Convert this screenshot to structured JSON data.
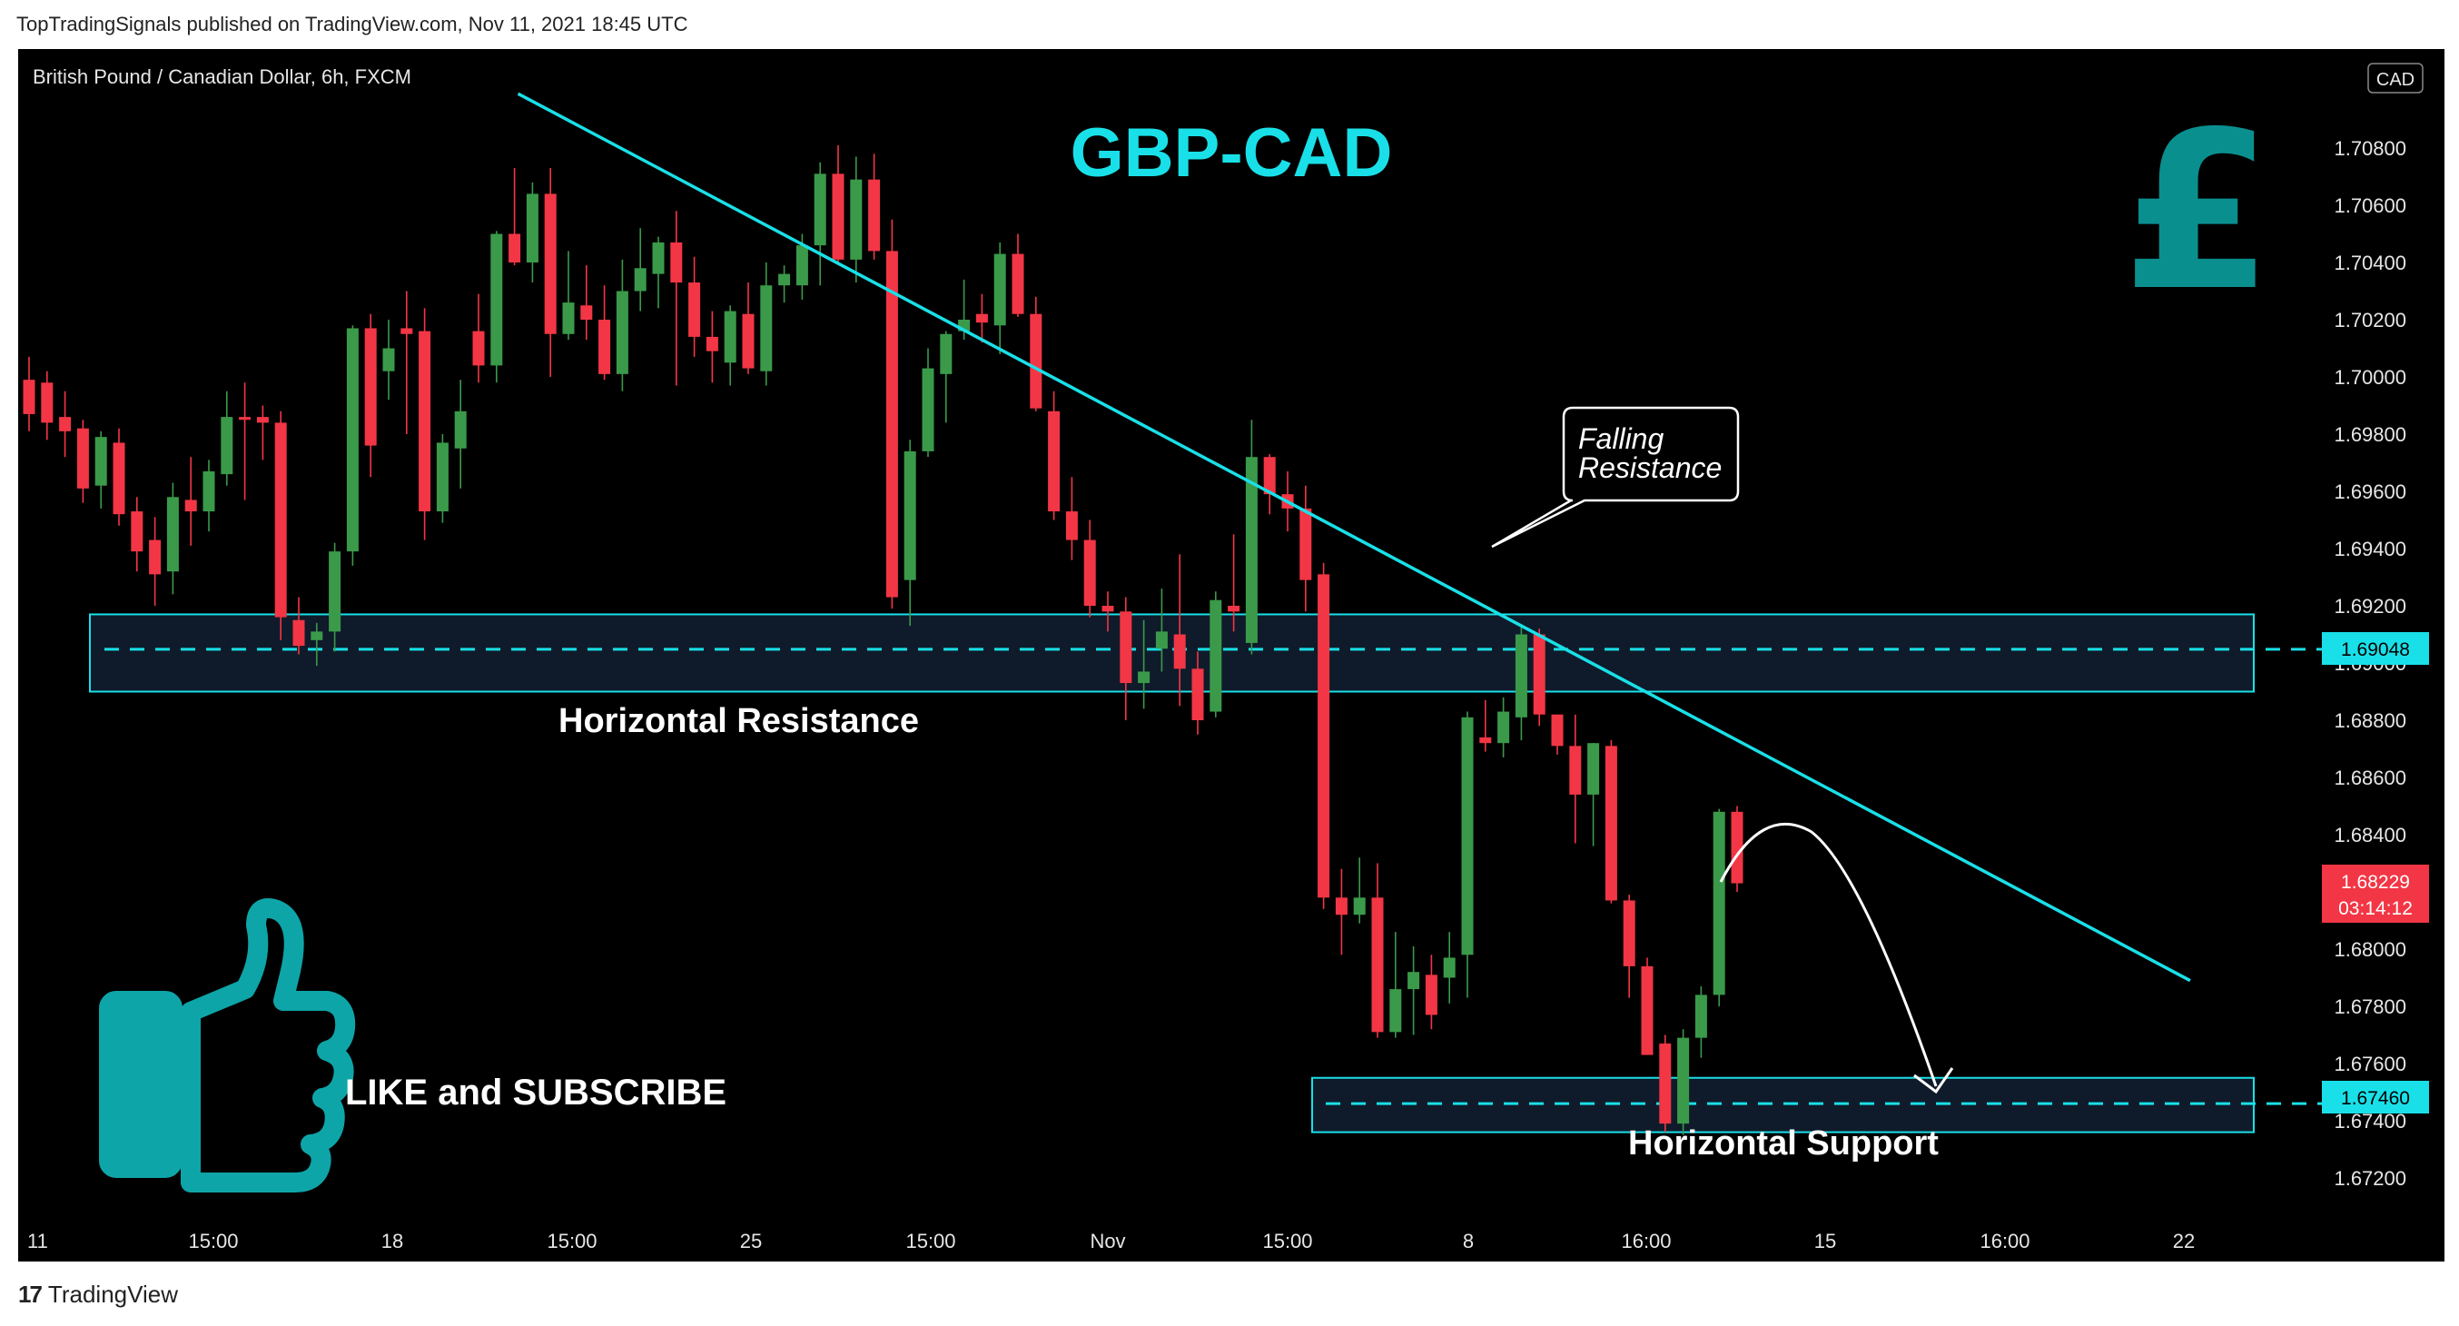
{
  "header": {
    "publisher_line": "TopTradingSignals published on TradingView.com, Nov 11, 2021 18:45 UTC"
  },
  "footer": {
    "brand": "TradingView",
    "brand_icon": "tradingview-logo-icon"
  },
  "chart_data": {
    "type": "candlestick",
    "symbol_line": "British Pound / Canadian Dollar, 6h, FXCM",
    "title": "GBP-CAD",
    "currency_badge": "CAD",
    "y_ticks": [
      "1.70800",
      "1.70600",
      "1.70400",
      "1.70200",
      "1.70000",
      "1.69800",
      "1.69600",
      "1.69400",
      "1.69200",
      "1.69000",
      "1.68800",
      "1.68600",
      "1.68400",
      "1.68200",
      "1.68000",
      "1.67800",
      "1.67600",
      "1.67400",
      "1.67200"
    ],
    "x_ticks": [
      "11",
      "15:00",
      "18",
      "15:00",
      "25",
      "15:00",
      "Nov",
      "15:00",
      "8",
      "16:00",
      "15",
      "16:00",
      "22"
    ],
    "ylim": [
      1.6712,
      1.7115
    ],
    "price_labels": {
      "resistance_level": "1.69048",
      "support_level": "1.67460",
      "last_price": "1.68229",
      "countdown": "03:14:12"
    },
    "annotations": {
      "falling_resistance": [
        "Falling",
        "Resistance"
      ],
      "horizontal_resistance": "Horizontal Resistance",
      "horizontal_support": "Horizontal Support",
      "like_subscribe": "LIKE and SUBSCRIBE"
    },
    "levels": {
      "resistance": 1.69048,
      "resistance_zone": [
        1.689,
        1.6917
      ],
      "support": 1.6746,
      "support_zone": [
        1.6736,
        1.6755
      ]
    },
    "trendline": [
      [
        0,
        1.7099
      ],
      [
        93,
        1.6789
      ]
    ],
    "candles": [
      [
        1.6999,
        1.7007,
        1.6981,
        1.6987
      ],
      [
        1.6998,
        1.7002,
        1.6978,
        1.6984
      ],
      [
        1.6986,
        1.6995,
        1.6972,
        1.6981
      ],
      [
        1.6982,
        1.6985,
        1.6956,
        1.6961
      ],
      [
        1.6962,
        1.6981,
        1.6954,
        1.6979
      ],
      [
        1.6977,
        1.6982,
        1.6948,
        1.6952
      ],
      [
        1.6953,
        1.6958,
        1.6932,
        1.6939
      ],
      [
        1.6943,
        1.6951,
        1.692,
        1.6931
      ],
      [
        1.6932,
        1.6963,
        1.6924,
        1.6958
      ],
      [
        1.6957,
        1.6972,
        1.6941,
        1.6953
      ],
      [
        1.6953,
        1.6971,
        1.6946,
        1.6967
      ],
      [
        1.6966,
        1.6995,
        1.6962,
        1.6986
      ],
      [
        1.6986,
        1.6998,
        1.6957,
        1.6985
      ],
      [
        1.6986,
        1.699,
        1.6971,
        1.6984
      ],
      [
        1.6984,
        1.6988,
        1.6908,
        1.6916
      ],
      [
        1.6915,
        1.6923,
        1.6903,
        1.6906
      ],
      [
        1.6908,
        1.6914,
        1.6899,
        1.6911
      ],
      [
        1.6911,
        1.6942,
        1.6904,
        1.6939
      ],
      [
        1.6939,
        1.7018,
        1.6934,
        1.7017
      ],
      [
        1.7017,
        1.7022,
        1.6965,
        1.6976
      ],
      [
        1.7002,
        1.702,
        1.6992,
        1.701
      ],
      [
        1.7017,
        1.703,
        1.698,
        1.7015
      ],
      [
        1.7016,
        1.7024,
        1.6943,
        1.6953
      ],
      [
        1.6953,
        1.698,
        1.6949,
        1.6977
      ],
      [
        1.6975,
        1.6999,
        1.6961,
        1.6988
      ],
      [
        1.7016,
        1.7029,
        1.6998,
        1.7004
      ],
      [
        1.7004,
        1.7051,
        1.6998,
        1.705
      ],
      [
        1.705,
        1.7073,
        1.7039,
        1.704
      ],
      [
        1.704,
        1.7068,
        1.7033,
        1.7064
      ],
      [
        1.7064,
        1.7073,
        1.7,
        1.7015
      ],
      [
        1.7015,
        1.7044,
        1.7013,
        1.7026
      ],
      [
        1.7025,
        1.7039,
        1.7013,
        1.702
      ],
      [
        1.702,
        1.7032,
        1.6999,
        1.7001
      ],
      [
        1.7001,
        1.7041,
        1.6995,
        1.703
      ],
      [
        1.703,
        1.7052,
        1.7023,
        1.7038
      ],
      [
        1.7036,
        1.7049,
        1.7024,
        1.7047
      ],
      [
        1.7047,
        1.7058,
        1.6997,
        1.7033
      ],
      [
        1.7033,
        1.7042,
        1.7007,
        1.7014
      ],
      [
        1.7014,
        1.7023,
        1.6998,
        1.7009
      ],
      [
        1.7005,
        1.7025,
        1.6997,
        1.7023
      ],
      [
        1.7022,
        1.7033,
        1.7001,
        1.7003
      ],
      [
        1.7002,
        1.704,
        1.6997,
        1.7032
      ],
      [
        1.7032,
        1.7039,
        1.7026,
        1.7036
      ],
      [
        1.7032,
        1.705,
        1.7027,
        1.7046
      ],
      [
        1.7046,
        1.7075,
        1.7032,
        1.7071
      ],
      [
        1.7071,
        1.7081,
        1.704,
        1.7041
      ],
      [
        1.7041,
        1.7077,
        1.7033,
        1.7069
      ],
      [
        1.7069,
        1.7078,
        1.7041,
        1.7044
      ],
      [
        1.7044,
        1.7055,
        1.6919,
        1.6923
      ],
      [
        1.6929,
        1.6978,
        1.6913,
        1.6974
      ],
      [
        1.6974,
        1.701,
        1.6972,
        1.7003
      ],
      [
        1.7001,
        1.7016,
        1.6984,
        1.7015
      ],
      [
        1.7016,
        1.7034,
        1.7013,
        1.702
      ],
      [
        1.7022,
        1.7029,
        1.7012,
        1.7019
      ],
      [
        1.7018,
        1.7047,
        1.7008,
        1.7043
      ],
      [
        1.7043,
        1.705,
        1.7021,
        1.7022
      ],
      [
        1.7022,
        1.7028,
        1.6988,
        1.6989
      ],
      [
        1.6988,
        1.6995,
        1.695,
        1.6953
      ],
      [
        1.6953,
        1.6965,
        1.6936,
        1.6943
      ],
      [
        1.6943,
        1.695,
        1.6916,
        1.692
      ],
      [
        1.692,
        1.6925,
        1.6911,
        1.6918
      ],
      [
        1.6918,
        1.6923,
        1.688,
        1.6893
      ],
      [
        1.6893,
        1.6915,
        1.6884,
        1.6897
      ],
      [
        1.6905,
        1.6926,
        1.6897,
        1.6911
      ],
      [
        1.691,
        1.6938,
        1.6885,
        1.6898
      ],
      [
        1.6898,
        1.6904,
        1.6875,
        1.688
      ],
      [
        1.6883,
        1.6925,
        1.6881,
        1.6922
      ],
      [
        1.692,
        1.6945,
        1.6911,
        1.6918
      ],
      [
        1.6907,
        1.6985,
        1.6903,
        1.6972
      ],
      [
        1.6972,
        1.6973,
        1.6952,
        1.6959
      ],
      [
        1.6959,
        1.6967,
        1.6946,
        1.6954
      ],
      [
        1.6954,
        1.6962,
        1.6918,
        1.6929
      ],
      [
        1.6931,
        1.6935,
        1.6814,
        1.6818
      ],
      [
        1.6818,
        1.6828,
        1.6798,
        1.6812
      ],
      [
        1.6812,
        1.6832,
        1.6809,
        1.6818
      ],
      [
        1.6818,
        1.683,
        1.6769,
        1.6771
      ],
      [
        1.6771,
        1.6806,
        1.6769,
        1.6786
      ],
      [
        1.6786,
        1.6801,
        1.677,
        1.6792
      ],
      [
        1.6791,
        1.6798,
        1.6772,
        1.6777
      ],
      [
        1.679,
        1.6806,
        1.6781,
        1.6797
      ],
      [
        1.6798,
        1.6883,
        1.6783,
        1.6881
      ],
      [
        1.6874,
        1.6887,
        1.6869,
        1.6872
      ],
      [
        1.6872,
        1.6888,
        1.6867,
        1.6883
      ],
      [
        1.6881,
        1.6913,
        1.6873,
        1.691
      ],
      [
        1.691,
        1.6912,
        1.6878,
        1.6882
      ],
      [
        1.6882,
        1.6878,
        1.6868,
        1.6871
      ],
      [
        1.6871,
        1.6882,
        1.6837,
        1.6854
      ],
      [
        1.6854,
        1.6872,
        1.6836,
        1.6872
      ],
      [
        1.6871,
        1.6873,
        1.6816,
        1.6817
      ],
      [
        1.6817,
        1.6819,
        1.6783,
        1.6794
      ],
      [
        1.6794,
        1.6797,
        1.6765,
        1.6763
      ],
      [
        1.6767,
        1.677,
        1.6736,
        1.6739
      ],
      [
        1.6739,
        1.6772,
        1.6735,
        1.6769
      ],
      [
        1.6769,
        1.6787,
        1.6762,
        1.6784
      ],
      [
        1.6784,
        1.6849,
        1.678,
        1.6848
      ],
      [
        1.6848,
        1.685,
        1.682,
        1.6823
      ]
    ]
  }
}
